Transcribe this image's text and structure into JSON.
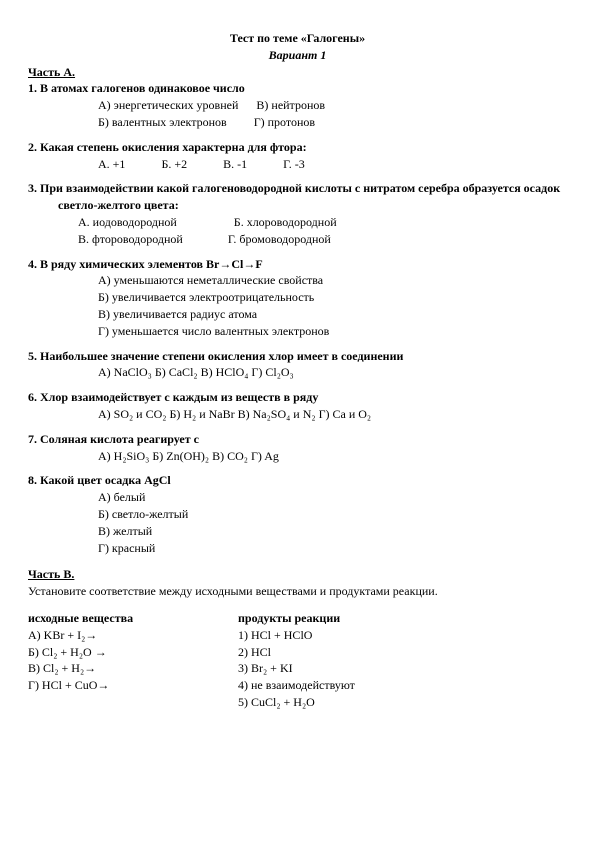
{
  "title": "Тест по теме «Галогены»",
  "variant": "Вариант 1",
  "partA": "Часть А.",
  "q1": {
    "text": "1. В атомах галогенов одинаковое число",
    "a": "А) энергетических уровней",
    "b": "Б) валентных электронов",
    "v": "В) нейтронов",
    "g": "Г) протонов"
  },
  "q2": {
    "text": "2. Какая степень окисления характерна для фтора:",
    "a": "А. +1",
    "b": "Б. +2",
    "v": "В. -1",
    "g": "Г. -3"
  },
  "q3": {
    "l1": "3.   При взаимодействии какой галогеноводородной кислоты с нитратом серебра образуется осадок",
    "l2": "светло-желтого цвета:",
    "a": "А. иодоводородной",
    "b": "Б. хлороводородной",
    "v": "В. фтороводородной",
    "g": "Г. бромоводородной"
  },
  "q4": {
    "text": "4. В ряду химических элементов Br→Cl→F",
    "a": "А) уменьшаются неметаллические свойства",
    "b": "Б) увеличивается электроотрицательность",
    "v": "В) увеличивается радиус атома",
    "g": "Г) уменьшается число валентных электронов"
  },
  "q5": {
    "text": "5.   Наибольшее значение степени окисления хлор имеет в соединении",
    "opts": "А) NaClO₃     Б) CaCl₂     В) HClO₄     Г) Cl₂O₃"
  },
  "q6": {
    "text": "6. Хлор  взаимодействует  с каждым из веществ в ряду",
    "opts": "А) SO₂ и CO₂       Б) H₂  и NaBr      В) Na₂SO₄  и N₂       Г) Ca и  O₂"
  },
  "q7": {
    "text": "7. Соляная кислота реагирует с",
    "opts": "А) H₂SiO₃     Б) Zn(OH)₂     В) CO₂      Г) Ag"
  },
  "q8": {
    "text": "8. Какой цвет осадка AgCl",
    "a": "А) белый",
    "b": "Б) светло-желтый",
    "v": "В) желтый",
    "g": "Г) красный"
  },
  "partB": "Часть В.",
  "bIntro": "Установите соответствие между исходными веществами и продуктами реакции.",
  "bHeadL": "исходные вещества",
  "bHeadR": "продукты  реакции",
  "bL": {
    "a": "А) KBr + I₂→",
    "b": "Б) Cl₂ + H₂O →",
    "v": "В) Cl₂ + H₂→",
    "g": "Г) HCl  + CuO→"
  },
  "bR": {
    "r1": "1) HCl + HClO",
    "r2": "2) HCl",
    "r3": "3) Br₂ + KI",
    "r4": "4) не взаимодействуют",
    "r5": "5) CuCl₂ + H₂O"
  }
}
